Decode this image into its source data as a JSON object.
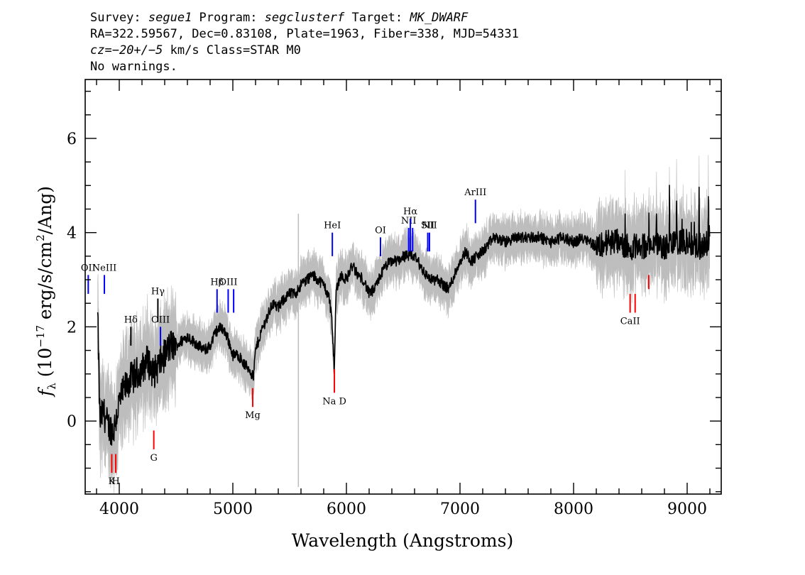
{
  "header": {
    "line1": {
      "survey_label": "Survey: ",
      "survey": "segue1",
      "program_label": " Program: ",
      "program": "segclusterf",
      "target_label": " Target: ",
      "target": "MK_DWARF"
    },
    "line2": "RA=322.59567, Dec=0.83108, Plate=1963, Fiber=338, MJD=54331",
    "line3": {
      "cz_label": "cz",
      "cz_value": "=−20+/−5",
      "rest": " km/s Class=STAR M0"
    },
    "line4": "No warnings."
  },
  "chart_data": {
    "type": "line",
    "xlabel": "Wavelength (Angstroms)",
    "ylabel": "f_λ (10^-17 erg/s/cm^2/Ang)",
    "ylabel_parts": {
      "symbol": "f",
      "symbol_sub": "λ",
      "pre": " (10",
      "exp1": "−17",
      "mid": " erg/s/cm",
      "exp2": "2",
      "post": "/Ang)"
    },
    "xlim": [
      3700,
      9300
    ],
    "ylim": [
      -1.55,
      7.25
    ],
    "xticks": [
      4000,
      5000,
      6000,
      7000,
      8000,
      9000
    ],
    "yticks": [
      0,
      2,
      4,
      6
    ],
    "x_minor_step": 200,
    "y_minor_step": 0.5,
    "grid": false,
    "colors": {
      "flux": "#000000",
      "error_band": "#bdbdbd",
      "emission_lines": "#0000ff",
      "absorption_lines": "#ff0000",
      "axes": "#000000"
    },
    "spectrum_anchors": {
      "x": [
        3810,
        3830,
        3860,
        3900,
        3950,
        4000,
        4050,
        4100,
        4150,
        4200,
        4250,
        4300,
        4350,
        4400,
        4450,
        4500,
        4550,
        4600,
        4650,
        4700,
        4750,
        4800,
        4850,
        4900,
        4950,
        5000,
        5050,
        5100,
        5150,
        5180,
        5200,
        5250,
        5300,
        5350,
        5400,
        5450,
        5500,
        5550,
        5600,
        5650,
        5700,
        5750,
        5800,
        5850,
        5870,
        5893,
        5910,
        5950,
        6000,
        6050,
        6100,
        6150,
        6200,
        6250,
        6300,
        6350,
        6400,
        6450,
        6500,
        6550,
        6600,
        6650,
        6700,
        6750,
        6800,
        6850,
        6900,
        6950,
        7000,
        7050,
        7100,
        7150,
        7200,
        7300,
        7400,
        7500,
        7600,
        7700,
        7800,
        7900,
        8000,
        8100,
        8200,
        8300,
        8400,
        8500,
        8600,
        8700,
        8800,
        8900,
        9000,
        9100,
        9200
      ],
      "y": [
        2.2,
        0.0,
        0.2,
        -0.1,
        -0.2,
        0.4,
        0.7,
        0.9,
        1.0,
        1.1,
        1.3,
        1.0,
        1.2,
        1.4,
        1.6,
        1.6,
        1.7,
        1.8,
        1.7,
        1.6,
        1.5,
        1.6,
        1.9,
        2.0,
        1.8,
        1.4,
        1.4,
        1.2,
        1.1,
        0.9,
        1.5,
        1.9,
        2.2,
        2.5,
        2.4,
        2.6,
        2.7,
        2.7,
        2.9,
        3.0,
        3.1,
        3.0,
        2.9,
        2.6,
        2.2,
        1.1,
        2.8,
        3.1,
        3.0,
        3.3,
        3.1,
        3.0,
        2.7,
        2.8,
        3.1,
        3.3,
        3.4,
        3.4,
        3.5,
        3.5,
        3.5,
        3.3,
        3.1,
        3.0,
        3.0,
        2.9,
        2.8,
        3.1,
        3.4,
        3.6,
        3.4,
        3.5,
        3.6,
        3.9,
        3.8,
        3.9,
        3.9,
        3.9,
        3.8,
        3.9,
        3.8,
        3.9,
        3.7,
        3.8,
        3.8,
        3.7,
        3.7,
        3.8,
        3.7,
        3.8,
        3.8,
        3.7,
        3.8
      ]
    },
    "spectral_lines": [
      {
        "name": "OII",
        "wavelength": 3727,
        "kind": "emission",
        "y_top": 3.1,
        "y_bottom": 2.7
      },
      {
        "name": "NeIII",
        "wavelength": 3869,
        "kind": "emission",
        "y_top": 3.1,
        "y_bottom": 2.7
      },
      {
        "name": "Hδ",
        "wavelength": 4102,
        "kind": "blended",
        "y_top": 2.0,
        "y_bottom": 1.6
      },
      {
        "name": "Hγ",
        "wavelength": 4340,
        "kind": "blended",
        "y_top": 2.6,
        "y_bottom": 2.1
      },
      {
        "name": "OIII",
        "wavelength": 4363,
        "kind": "emission",
        "y_top": 2.0,
        "y_bottom": 1.6
      },
      {
        "name": "Hβ",
        "wavelength": 4861,
        "kind": "emission",
        "y_top": 2.8,
        "y_bottom": 2.3
      },
      {
        "name": "OIII",
        "wavelength": 4959,
        "kind": "emission",
        "y_top": 2.8,
        "y_bottom": 2.3
      },
      {
        "name": "",
        "wavelength": 5007,
        "kind": "emission",
        "y_top": 2.8,
        "y_bottom": 2.3
      },
      {
        "name": "HeI",
        "wavelength": 5876,
        "kind": "emission",
        "y_top": 4.0,
        "y_bottom": 3.5
      },
      {
        "name": "OI",
        "wavelength": 6300,
        "kind": "emission",
        "y_top": 3.9,
        "y_bottom": 3.5
      },
      {
        "name": "NII",
        "wavelength": 6548,
        "kind": "emission",
        "y_top": 4.1,
        "y_bottom": 3.6
      },
      {
        "name": "Hα",
        "wavelength": 6563,
        "kind": "emission",
        "y_top": 4.3,
        "y_bottom": 3.6
      },
      {
        "name": "",
        "wavelength": 6583,
        "kind": "emission",
        "y_top": 4.1,
        "y_bottom": 3.6
      },
      {
        "name": "SII",
        "wavelength": 6716,
        "kind": "emission",
        "y_top": 4.0,
        "y_bottom": 3.6
      },
      {
        "name": "NII",
        "wavelength": 6731,
        "kind": "emission",
        "y_top": 4.0,
        "y_bottom": 3.6
      },
      {
        "name": "ArIII",
        "wavelength": 7136,
        "kind": "emission",
        "y_top": 4.7,
        "y_bottom": 4.2
      },
      {
        "name": "K",
        "wavelength": 3934,
        "kind": "absorption",
        "y_top": -0.7,
        "y_bottom": -1.1
      },
      {
        "name": "H",
        "wavelength": 3969,
        "kind": "absorption",
        "y_top": -0.7,
        "y_bottom": -1.1
      },
      {
        "name": "G",
        "wavelength": 4304,
        "kind": "absorption",
        "y_top": -0.2,
        "y_bottom": -0.6
      },
      {
        "name": "Mg",
        "wavelength": 5175,
        "kind": "absorption",
        "y_top": 0.7,
        "y_bottom": 0.3
      },
      {
        "name": "Na D",
        "wavelength": 5894,
        "kind": "absorption",
        "y_top": 1.1,
        "y_bottom": 0.6
      },
      {
        "name": "CaII",
        "wavelength": 8498,
        "kind": "absorption",
        "y_top": 2.7,
        "y_bottom": 2.3
      },
      {
        "name": "",
        "wavelength": 8542,
        "kind": "absorption",
        "y_top": 2.7,
        "y_bottom": 2.3
      },
      {
        "name": "",
        "wavelength": 8662,
        "kind": "absorption",
        "y_top": 3.1,
        "y_bottom": 2.8
      }
    ]
  }
}
